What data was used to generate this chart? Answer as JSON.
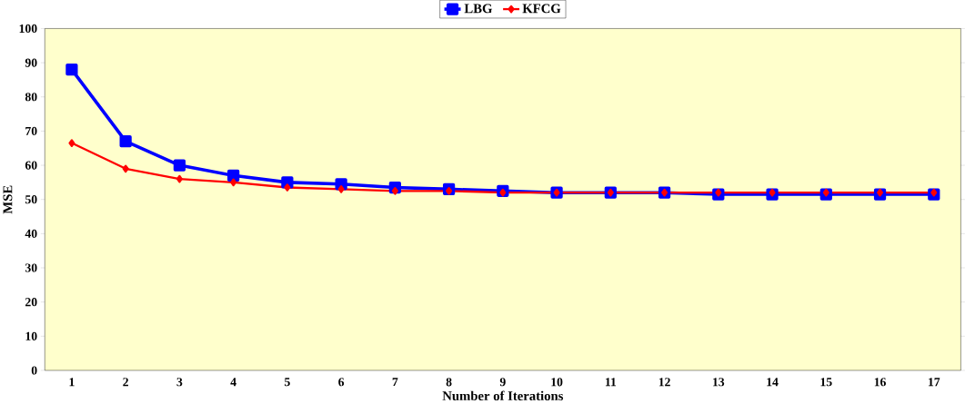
{
  "chart_data": {
    "type": "line",
    "xlabel": "Number of Iterations",
    "ylabel": "MSE",
    "categories": [
      "1",
      "2",
      "3",
      "4",
      "5",
      "6",
      "7",
      "8",
      "9",
      "10",
      "11",
      "12",
      "13",
      "14",
      "15",
      "16",
      "17"
    ],
    "series": [
      {
        "name": "LBG",
        "color": "#0000ff",
        "marker": "square",
        "values": [
          88,
          67,
          60,
          57,
          55,
          54.5,
          53.5,
          53,
          52.5,
          52,
          52,
          52,
          51.5,
          51.5,
          51.5,
          51.5,
          51.5
        ]
      },
      {
        "name": "KFCG",
        "color": "#ff0000",
        "marker": "diamond",
        "values": [
          66.5,
          59,
          56,
          55,
          53.5,
          53,
          52.5,
          52.5,
          52,
          52,
          52,
          52,
          52,
          52,
          52,
          52,
          52
        ]
      }
    ],
    "ylim": [
      0,
      100
    ],
    "yticks": [
      0,
      10,
      20,
      30,
      40,
      50,
      60,
      70,
      80,
      90,
      100
    ],
    "legend": "top",
    "grid": false
  }
}
